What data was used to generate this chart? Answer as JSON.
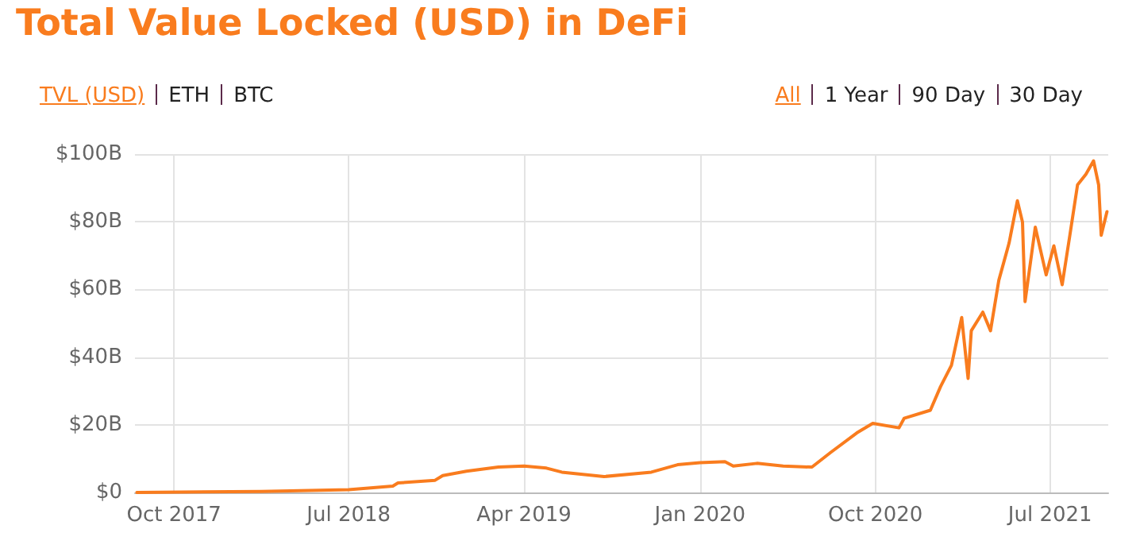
{
  "chart_data": {
    "type": "line",
    "title": "Total Value Locked (USD) in DeFi",
    "annotations": [
      "TVL (USD)",
      "ETH",
      "BTC",
      "All",
      "1 Year",
      "90 Day",
      "30 Day"
    ],
    "x": [
      "2017-08-04",
      "2018-02-14",
      "2018-07-01",
      "2018-09-08",
      "2018-09-16",
      "2018-11-13",
      "2018-11-25",
      "2019-01-01",
      "2019-02-20",
      "2019-04-01",
      "2019-05-06",
      "2019-05-30",
      "2019-08-04",
      "2019-10-17",
      "2019-11-27",
      "2020-01-01",
      "2020-02-09",
      "2020-02-22",
      "2020-03-30",
      "2020-05-10",
      "2020-06-24",
      "2020-07-23",
      "2020-09-02",
      "2020-09-27",
      "2020-11-07",
      "2020-11-15",
      "2020-12-26",
      "2021-01-11",
      "2021-01-28",
      "2021-02-13",
      "2021-02-23",
      "2021-02-28",
      "2021-03-18",
      "2021-03-30",
      "2021-04-12",
      "2021-04-28",
      "2021-05-11",
      "2021-05-19",
      "2021-05-23",
      "2021-06-08",
      "2021-06-25",
      "2021-07-07",
      "2021-07-20",
      "2021-08-01",
      "2021-08-13",
      "2021-08-26",
      "2021-09-07",
      "2021-09-15",
      "2021-09-19",
      "2021-09-28"
    ],
    "series": [
      {
        "color": "#f97c1e",
        "values": [
          0,
          0.3,
          0.8,
          1.9,
          2.8,
          3.6,
          5,
          6.3,
          7.5,
          7.8,
          7.2,
          6,
          4.7,
          6,
          8.2,
          8.8,
          9.1,
          7.8,
          8.6,
          7.8,
          7.5,
          11.8,
          17.6,
          20.4,
          19.1,
          21.9,
          24.3,
          31.3,
          37.6,
          51.7,
          33.7,
          47.8,
          53.3,
          47.8,
          62.7,
          73.7,
          86.2,
          79.9,
          56.4,
          78.4,
          64.3,
          72.9,
          61.4,
          76,
          90.9,
          94,
          98,
          90.9,
          76,
          83
        ]
      }
    ],
    "xlim": [
      "2017-08-01",
      "2021-09-30"
    ],
    "xticks": [
      {
        "value": "2017-10-01",
        "label": "Oct 2017"
      },
      {
        "value": "2018-07-01",
        "label": "Jul 2018"
      },
      {
        "value": "2019-04-01",
        "label": "Apr 2019"
      },
      {
        "value": "2020-01-01",
        "label": "Jan 2020"
      },
      {
        "value": "2020-10-01",
        "label": "Oct 2020"
      },
      {
        "value": "2021-07-01",
        "label": "Jul 2021"
      }
    ],
    "ylim": [
      0,
      100
    ],
    "yticks": [
      {
        "value": 0,
        "label": "$0"
      },
      {
        "value": 20,
        "label": "$20B"
      },
      {
        "value": 40,
        "label": "$40B"
      },
      {
        "value": 60,
        "label": "$60B"
      },
      {
        "value": 80,
        "label": "$80B"
      },
      {
        "value": 100,
        "label": "$100B"
      }
    ],
    "grid": true,
    "marker": "none",
    "line_style": "solid"
  }
}
